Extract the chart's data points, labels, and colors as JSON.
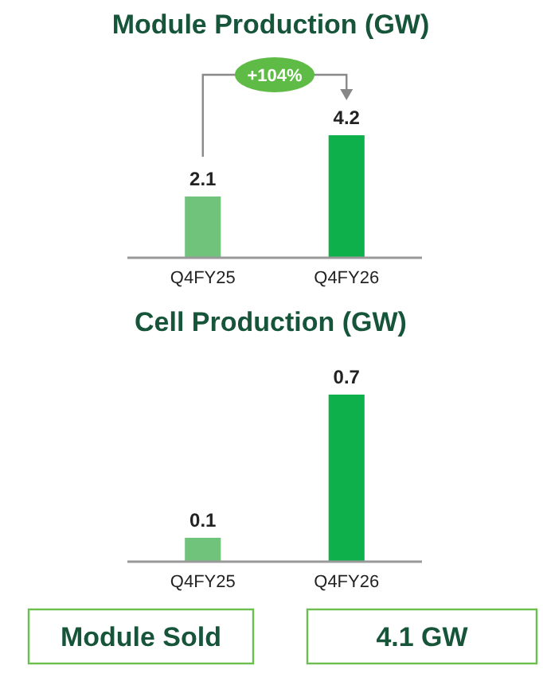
{
  "chart_data": [
    {
      "type": "bar",
      "title": "Module Production (GW)",
      "categories": [
        "Q4FY25",
        "Q4FY26"
      ],
      "values": [
        2.1,
        4.2
      ],
      "colors": [
        "#70c37a",
        "#0db04b"
      ],
      "data_labels": true,
      "annotations": [
        "+104%"
      ]
    },
    {
      "type": "bar",
      "title": "Cell Production (GW)",
      "categories": [
        "Q4FY25",
        "Q4FY26"
      ],
      "values": [
        0.1,
        0.7
      ],
      "colors": [
        "#70c37a",
        "#0db04b"
      ],
      "data_labels": true
    },
    {
      "type": "other",
      "annotations": [
        "Module Sold",
        "4.1 GW"
      ]
    }
  ]
}
